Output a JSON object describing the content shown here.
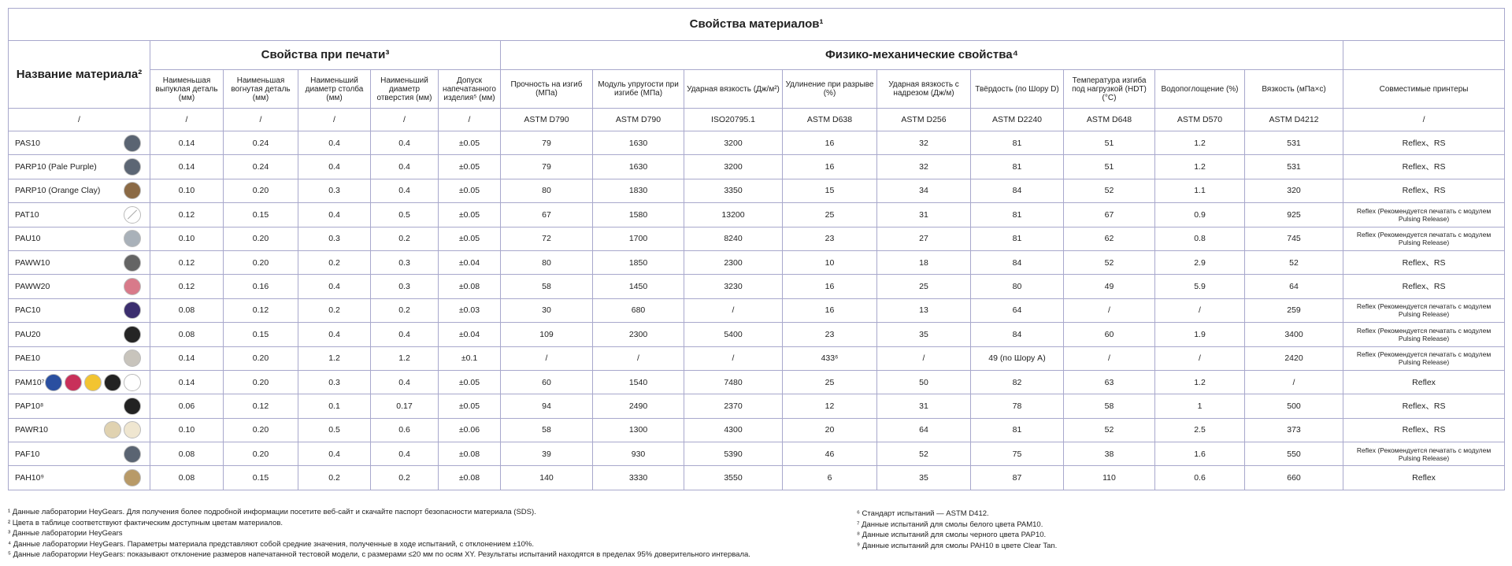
{
  "title": "Свойства материалов¹",
  "groups": {
    "name": "Название материала²",
    "print": "Свойства при печати³",
    "physical": "Физико-механические свойства⁴"
  },
  "columns": [
    "Наименьшая выпуклая деталь (мм)",
    "Наименьшая вогнутая деталь (мм)",
    "Наименьший диаметр столба (мм)",
    "Наименьший диаметр отверстия (мм)",
    "Допуск напечатанного изделия⁵ (мм)",
    "Прочность на изгиб (МПа)",
    "Модуль упругости при изгибе (МПа)",
    "Ударная вязкость (Дж/м²)",
    "Удлинение при разрыве (%)",
    "Ударная вязкость с надрезом (Дж/м)",
    "Твёрдость (по Шору D)",
    "Температура изгиба под нагрузкой (HDT) (°C)",
    "Водопоглощение (%)",
    "Вязкость (мПа×с)",
    "Совместимые принтеры"
  ],
  "units": [
    "/",
    "/",
    "/",
    "/",
    "/",
    "/",
    "ASTM D790",
    "ASTM D790",
    "ISO20795.1",
    "ASTM D638",
    "ASTM D256",
    "ASTM D2240",
    "ASTM D648",
    "ASTM D570",
    "ASTM D4212",
    "/"
  ],
  "rows": [
    {
      "name": "PAS10",
      "swatches": [
        "#5a6472"
      ],
      "cells": [
        "0.14",
        "0.24",
        "0.4",
        "0.4",
        "±0.05",
        "79",
        "1630",
        "3200",
        "16",
        "32",
        "81",
        "51",
        "1.2",
        "531",
        "Reflex、RS"
      ]
    },
    {
      "name": "PARP10 (Pale Purple)",
      "swatches": [
        "#5c6674"
      ],
      "cells": [
        "0.14",
        "0.24",
        "0.4",
        "0.4",
        "±0.05",
        "79",
        "1630",
        "3200",
        "16",
        "32",
        "81",
        "51",
        "1.2",
        "531",
        "Reflex、RS"
      ]
    },
    {
      "name": "PARP10 (Orange Clay)",
      "swatches": [
        "#8b6a45"
      ],
      "cells": [
        "0.10",
        "0.20",
        "0.3",
        "0.4",
        "±0.05",
        "80",
        "1830",
        "3350",
        "15",
        "34",
        "84",
        "52",
        "1.1",
        "320",
        "Reflex、RS"
      ]
    },
    {
      "name": "PAT10",
      "swatches": [
        "transparent"
      ],
      "cells": [
        "0.12",
        "0.15",
        "0.4",
        "0.5",
        "±0.05",
        "67",
        "1580",
        "13200",
        "25",
        "31",
        "81",
        "67",
        "0.9",
        "925",
        "Reflex (Рекомендуется печатать с модулем Pulsing Release)"
      ]
    },
    {
      "name": "PAU10",
      "swatches": [
        "#a9b1b9"
      ],
      "cells": [
        "0.10",
        "0.20",
        "0.3",
        "0.2",
        "±0.05",
        "72",
        "1700",
        "8240",
        "23",
        "27",
        "81",
        "62",
        "0.8",
        "745",
        "Reflex (Рекомендуется печатать с модулем Pulsing Release)"
      ]
    },
    {
      "name": "PAWW10",
      "swatches": [
        "#646464"
      ],
      "cells": [
        "0.12",
        "0.20",
        "0.2",
        "0.3",
        "±0.04",
        "80",
        "1850",
        "2300",
        "10",
        "18",
        "84",
        "52",
        "2.9",
        "52",
        "Reflex、RS"
      ]
    },
    {
      "name": "PAWW20",
      "swatches": [
        "#d87a8a"
      ],
      "cells": [
        "0.12",
        "0.16",
        "0.4",
        "0.3",
        "±0.08",
        "58",
        "1450",
        "3230",
        "16",
        "25",
        "80",
        "49",
        "5.9",
        "64",
        "Reflex、RS"
      ]
    },
    {
      "name": "PAC10",
      "swatches": [
        "#3b2e6e"
      ],
      "cells": [
        "0.08",
        "0.12",
        "0.2",
        "0.2",
        "±0.03",
        "30",
        "680",
        "/",
        "16",
        "13",
        "64",
        "/",
        "/",
        "259",
        "Reflex (Рекомендуется печатать с модулем Pulsing Release)"
      ]
    },
    {
      "name": "PAU20",
      "swatches": [
        "#252525"
      ],
      "cells": [
        "0.08",
        "0.15",
        "0.4",
        "0.4",
        "±0.04",
        "109",
        "2300",
        "5400",
        "23",
        "35",
        "84",
        "60",
        "1.9",
        "3400",
        "Reflex (Рекомендуется печатать с модулем Pulsing Release)"
      ]
    },
    {
      "name": "PAE10",
      "swatches": [
        "#c8c4bc"
      ],
      "cells": [
        "0.14",
        "0.20",
        "1.2",
        "1.2",
        "±0.1",
        "/",
        "/",
        "/",
        "433⁶",
        "/",
        "49 (по Шору А)",
        "/",
        "/",
        "2420",
        "Reflex (Рекомендуется печатать с модулем Pulsing Release)"
      ]
    },
    {
      "name": "PAM10⁷",
      "swatches": [
        "#2a4fa0",
        "#c8305a",
        "#f2c431",
        "#222222",
        "#ffffff"
      ],
      "cells": [
        "0.14",
        "0.20",
        "0.3",
        "0.4",
        "±0.05",
        "60",
        "1540",
        "7480",
        "25",
        "50",
        "82",
        "63",
        "1.2",
        "/",
        "Reflex"
      ]
    },
    {
      "name": "PAP10⁸",
      "swatches": [
        "#222222"
      ],
      "cells": [
        "0.06",
        "0.12",
        "0.1",
        "0.17",
        "±0.05",
        "94",
        "2490",
        "2370",
        "12",
        "31",
        "78",
        "58",
        "1",
        "500",
        "Reflex、RS"
      ]
    },
    {
      "name": "PAWR10",
      "swatches": [
        "#e0d2b0",
        "#efe6d0"
      ],
      "cells": [
        "0.10",
        "0.20",
        "0.5",
        "0.6",
        "±0.06",
        "58",
        "1300",
        "4300",
        "20",
        "64",
        "81",
        "52",
        "2.5",
        "373",
        "Reflex、RS"
      ]
    },
    {
      "name": "PAF10",
      "swatches": [
        "#5a6472"
      ],
      "cells": [
        "0.08",
        "0.20",
        "0.4",
        "0.4",
        "±0.08",
        "39",
        "930",
        "5390",
        "46",
        "52",
        "75",
        "38",
        "1.6",
        "550",
        "Reflex (Рекомендуется печатать с модулем Pulsing Release)"
      ]
    },
    {
      "name": "PAH10⁹",
      "swatches": [
        "#b89a68"
      ],
      "cells": [
        "0.08",
        "0.15",
        "0.2",
        "0.2",
        "±0.08",
        "140",
        "3330",
        "3550",
        "6",
        "35",
        "87",
        "110",
        "0.6",
        "660",
        "Reflex"
      ]
    }
  ],
  "footnotes": {
    "left": [
      "¹ Данные лаборатории HeyGears. Для получения более подробной информации посетите веб-сайт и скачайте паспорт безопасности материала (SDS).",
      "² Цвета в таблице соответствуют фактическим доступным цветам материалов.",
      "³ Данные лаборатории HeyGears",
      "⁴ Данные лаборатории HeyGears. Параметры материала представляют собой средние значения, полученные в ходе испытаний, с отклонением ±10%.",
      "⁵ Данные лаборатории HeyGears: показывают отклонение размеров напечатанной тестовой модели, с размерами ≤20 мм по осям XY. Результаты испытаний находятся в пределах 95% доверительного интервала."
    ],
    "right": [
      "⁶ Стандарт испытаний — ASTM D412.",
      "⁷ Данные испытаний для смолы белого цвета PAM10.",
      "⁸ Данные испытаний для смолы черного цвета PAP10.",
      "⁹ Данные испытаний для смолы PAH10 в цвете Clear Tan."
    ]
  }
}
